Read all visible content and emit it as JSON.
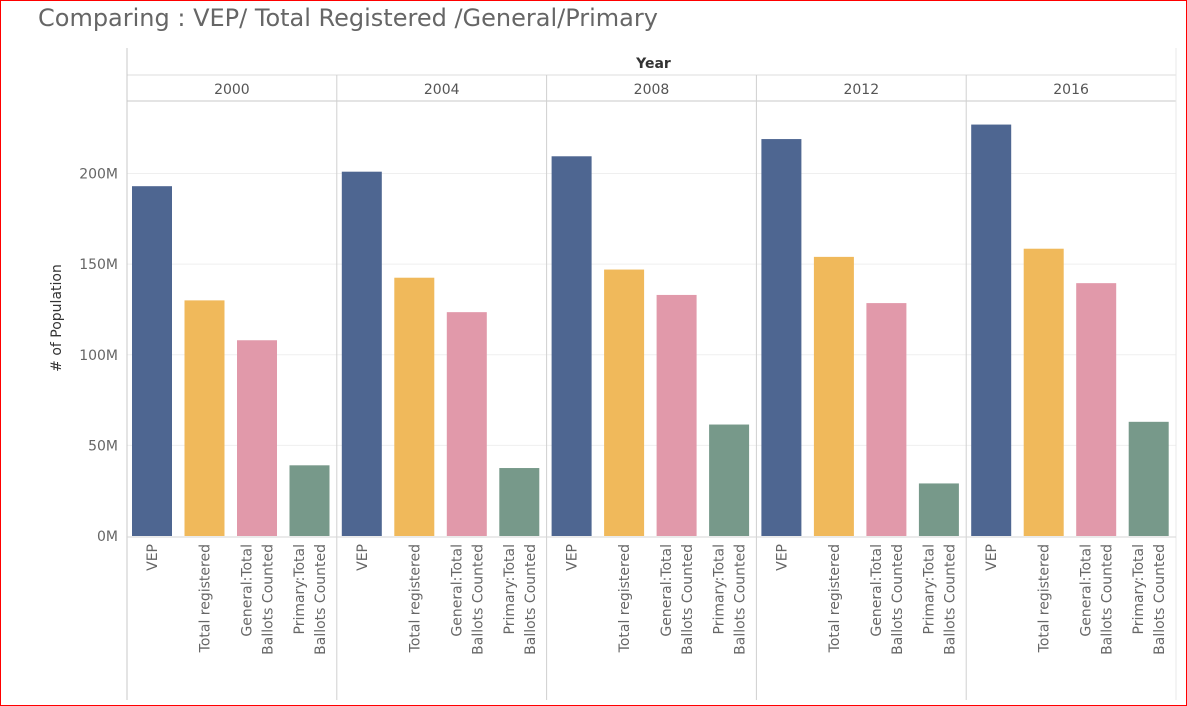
{
  "chart_data": {
    "type": "bar",
    "title": "Comparing : VEP/ Total Registered /General/Primary",
    "column_header": "Year",
    "ylabel": "# of Population",
    "ylim": [
      0,
      240000000
    ],
    "y_ticks": [
      {
        "value": 0,
        "label": "0M"
      },
      {
        "value": 50000000,
        "label": "50M"
      },
      {
        "value": 100000000,
        "label": "100M"
      },
      {
        "value": 150000000,
        "label": "150M"
      },
      {
        "value": 200000000,
        "label": "200M"
      }
    ],
    "grid": true,
    "categories": [
      {
        "lines": [
          "VEP"
        ]
      },
      {
        "lines": [
          "Total registered"
        ]
      },
      {
        "lines": [
          "General:Total",
          "Ballots Counted"
        ]
      },
      {
        "lines": [
          "Primary:Total",
          "Ballots Counted"
        ]
      }
    ],
    "category_colors": [
      "#4e6691",
      "#f0b95b",
      "#e199aa",
      "#77998a"
    ],
    "panels": [
      {
        "year": "2000",
        "values": [
          193000000,
          130000000,
          108000000,
          39000000
        ]
      },
      {
        "year": "2004",
        "values": [
          201000000,
          142500000,
          123500000,
          37500000
        ]
      },
      {
        "year": "2008",
        "values": [
          209500000,
          147000000,
          133000000,
          61500000
        ]
      },
      {
        "year": "2012",
        "values": [
          219000000,
          154000000,
          128500000,
          29000000
        ]
      },
      {
        "year": "2016",
        "values": [
          227000000,
          158500000,
          139500000,
          63000000
        ]
      }
    ]
  }
}
